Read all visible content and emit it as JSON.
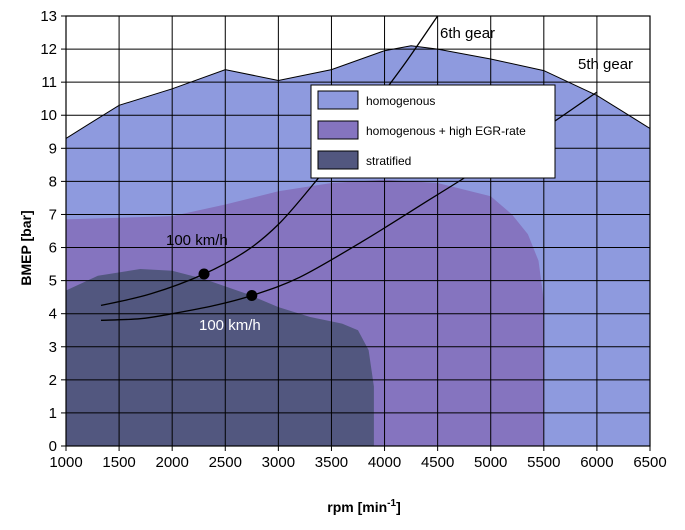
{
  "chart_data": {
    "type": "area",
    "xlabel": "rpm [min",
    "xlabel_sup": "-1",
    "xlabel_end": "]",
    "ylabel": "BMEP [bar]",
    "xlim": [
      1000,
      6500
    ],
    "ylim": [
      0,
      13
    ],
    "x_ticks": [
      1000,
      1500,
      2000,
      2500,
      3000,
      3500,
      4000,
      4500,
      5000,
      5500,
      6000,
      6500
    ],
    "y_ticks": [
      0,
      1,
      2,
      3,
      4,
      5,
      6,
      7,
      8,
      9,
      10,
      11,
      12,
      13
    ],
    "grid": true,
    "legend_position": "top-right",
    "series": [
      {
        "name": "homogenous",
        "color": "#8e9ade",
        "boundary": [
          [
            1000,
            9.3
          ],
          [
            1250,
            9.8
          ],
          [
            1500,
            10.3
          ],
          [
            2000,
            10.8
          ],
          [
            2500,
            11.38
          ],
          [
            3000,
            11.05
          ],
          [
            3500,
            11.38
          ],
          [
            4000,
            11.95
          ],
          [
            4250,
            12.1
          ],
          [
            4500,
            12.0
          ],
          [
            5000,
            11.7
          ],
          [
            5500,
            11.35
          ],
          [
            6000,
            10.6
          ],
          [
            6250,
            10.1
          ],
          [
            6500,
            9.6
          ]
        ]
      },
      {
        "name": "homogenous + high EGR-rate",
        "color": "#8574bf",
        "boundary": [
          [
            1000,
            6.85
          ],
          [
            2000,
            6.95
          ],
          [
            2500,
            7.3
          ],
          [
            3000,
            7.7
          ],
          [
            3500,
            7.95
          ],
          [
            4000,
            8.05
          ],
          [
            4500,
            7.95
          ],
          [
            5000,
            7.55
          ],
          [
            5200,
            7.0
          ],
          [
            5350,
            6.4
          ],
          [
            5450,
            5.6
          ],
          [
            5500,
            4.4
          ],
          [
            5500,
            0
          ]
        ]
      },
      {
        "name": "stratified",
        "color": "#52577f",
        "boundary": [
          [
            1000,
            4.7
          ],
          [
            1300,
            5.15
          ],
          [
            1700,
            5.35
          ],
          [
            2000,
            5.3
          ],
          [
            2300,
            5.05
          ],
          [
            2700,
            4.6
          ],
          [
            3000,
            4.2
          ],
          [
            3300,
            3.9
          ],
          [
            3600,
            3.7
          ],
          [
            3750,
            3.5
          ],
          [
            3850,
            2.9
          ],
          [
            3900,
            1.8
          ],
          [
            3900,
            0
          ]
        ]
      }
    ],
    "gear_lines": [
      {
        "label": "6th gear",
        "points": [
          [
            1330,
            4.25
          ],
          [
            1800,
            4.6
          ],
          [
            2300,
            5.2
          ],
          [
            2700,
            5.9
          ],
          [
            3000,
            6.7
          ],
          [
            3300,
            7.8
          ],
          [
            3600,
            9.0
          ],
          [
            3900,
            10.3
          ],
          [
            4200,
            11.6
          ],
          [
            4500,
            13.0
          ]
        ]
      },
      {
        "label": "5th gear",
        "points": [
          [
            1330,
            3.8
          ],
          [
            1700,
            3.85
          ],
          [
            2000,
            4.0
          ],
          [
            2400,
            4.25
          ],
          [
            2750,
            4.55
          ],
          [
            3200,
            5.1
          ],
          [
            3800,
            6.2
          ],
          [
            4400,
            7.4
          ],
          [
            5000,
            8.6
          ],
          [
            5500,
            9.6
          ],
          [
            6000,
            10.7
          ]
        ]
      }
    ],
    "operating_points": [
      {
        "label": "100 km/h",
        "x": 2300,
        "y": 5.2
      },
      {
        "label": "100 km/h",
        "x": 2750,
        "y": 4.55
      }
    ]
  }
}
